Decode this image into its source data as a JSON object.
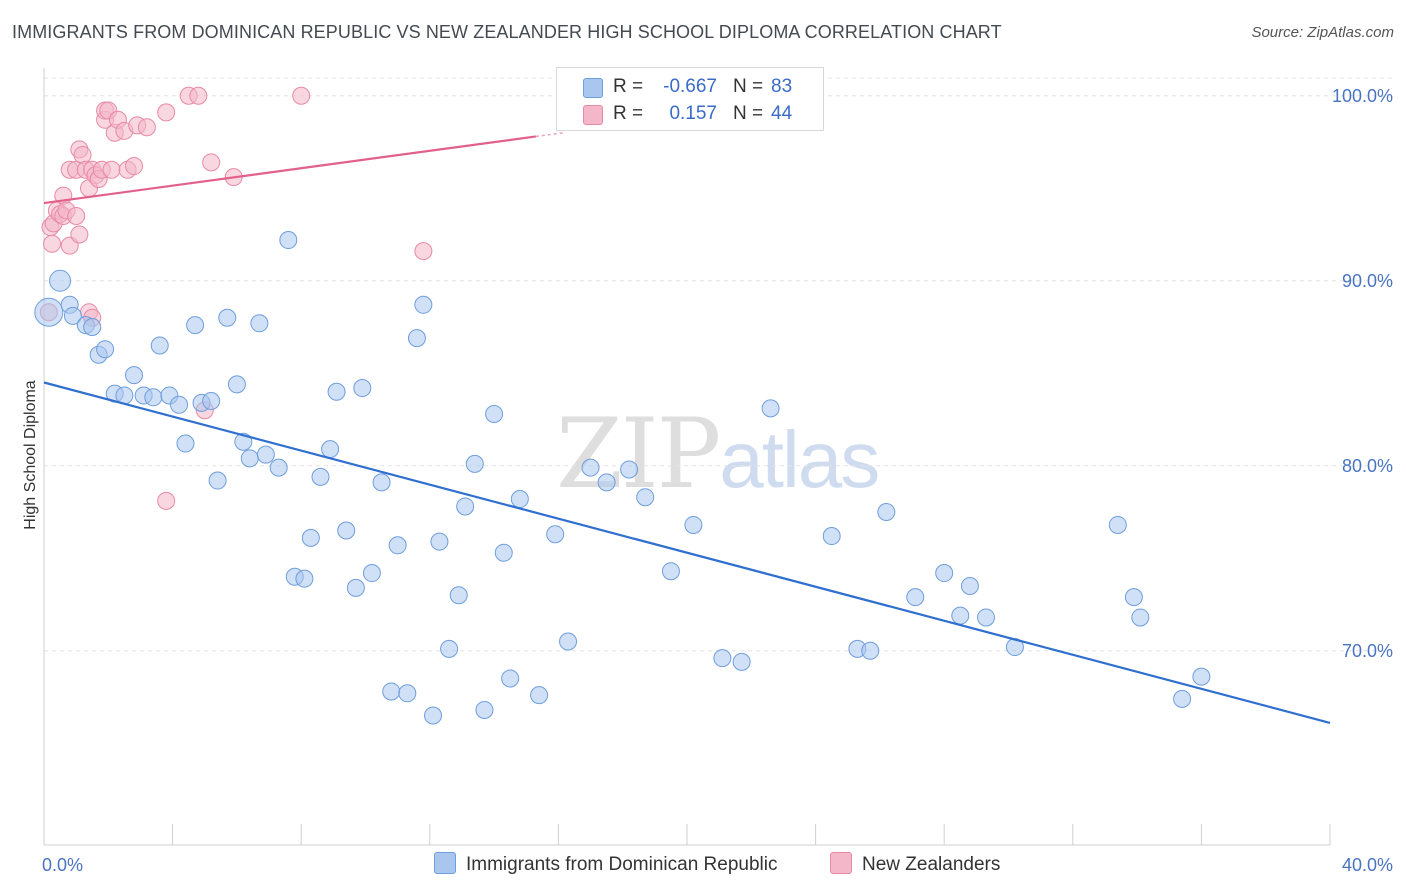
{
  "title": "IMMIGRANTS FROM DOMINICAN REPUBLIC VS NEW ZEALANDER HIGH SCHOOL DIPLOMA CORRELATION CHART",
  "source": "Source: ZipAtlas.com",
  "watermark": {
    "zip": "ZIP",
    "atlas": "atlas"
  },
  "legend": {
    "rows": [
      {
        "r_label": "R =",
        "r_value": "-0.667",
        "n_label": "N =",
        "n_value": "83"
      },
      {
        "r_label": "R =",
        "r_value": "0.157",
        "n_label": "N =",
        "n_value": "44"
      }
    ]
  },
  "bottom_legend": {
    "blue": "Immigrants from Dominican Republic",
    "pink": "New Zealanders"
  },
  "colors": {
    "blue_fill": "#a9c6ee",
    "blue_stroke": "#6f9edd",
    "blue_line": "#2f6fcf",
    "pink_fill": "#f4b7c9",
    "pink_stroke": "#e88aa6",
    "pink_line": "#e2608a",
    "axis_text": "#4a74c2",
    "grid": "#e4e4e4"
  },
  "chart_data": {
    "type": "scatter",
    "title": "IMMIGRANTS FROM DOMINICAN REPUBLIC VS NEW ZEALANDER HIGH SCHOOL DIPLOMA CORRELATION CHART",
    "xlabel": "",
    "ylabel": "High School Diploma",
    "xlim": [
      0,
      40
    ],
    "ylim": [
      59.5,
      101.5
    ],
    "x_tick_labels": [
      "0.0%",
      "40.0%"
    ],
    "x_ticks": [
      0,
      40
    ],
    "y_ticks": [
      70,
      80,
      90,
      100
    ],
    "y_tick_labels": [
      "70.0%",
      "80.0%",
      "90.0%",
      "100.0%"
    ],
    "grid": true,
    "legend_position": "top-center",
    "series": [
      {
        "name": "Immigrants from Dominican Republic",
        "color": "#a9c6ee",
        "trend": {
          "x": [
            0,
            40
          ],
          "y": [
            84.5,
            66.1
          ]
        },
        "points": [
          [
            0.15,
            88.3
          ],
          [
            0.5,
            90.0
          ],
          [
            0.8,
            88.7
          ],
          [
            0.9,
            88.1
          ],
          [
            1.3,
            87.6
          ],
          [
            1.5,
            87.5
          ],
          [
            1.7,
            86.0
          ],
          [
            1.9,
            86.3
          ],
          [
            2.2,
            83.9
          ],
          [
            2.5,
            83.8
          ],
          [
            2.8,
            84.9
          ],
          [
            3.1,
            83.8
          ],
          [
            3.4,
            83.7
          ],
          [
            3.6,
            86.5
          ],
          [
            3.9,
            83.8
          ],
          [
            4.2,
            83.3
          ],
          [
            4.4,
            81.2
          ],
          [
            4.7,
            87.6
          ],
          [
            4.9,
            83.4
          ],
          [
            5.2,
            83.5
          ],
          [
            5.4,
            79.2
          ],
          [
            5.7,
            88.0
          ],
          [
            6.0,
            84.4
          ],
          [
            6.2,
            81.3
          ],
          [
            6.4,
            80.4
          ],
          [
            6.7,
            87.7
          ],
          [
            6.9,
            80.6
          ],
          [
            7.3,
            79.9
          ],
          [
            7.6,
            92.2
          ],
          [
            7.8,
            74.0
          ],
          [
            8.1,
            73.9
          ],
          [
            8.3,
            76.1
          ],
          [
            8.6,
            79.4
          ],
          [
            8.9,
            80.9
          ],
          [
            9.1,
            84.0
          ],
          [
            9.4,
            76.5
          ],
          [
            9.7,
            73.4
          ],
          [
            9.9,
            84.2
          ],
          [
            10.2,
            74.2
          ],
          [
            10.5,
            79.1
          ],
          [
            10.8,
            67.8
          ],
          [
            11.0,
            75.7
          ],
          [
            11.3,
            67.7
          ],
          [
            11.6,
            86.9
          ],
          [
            11.8,
            88.7
          ],
          [
            12.1,
            66.5
          ],
          [
            12.3,
            75.9
          ],
          [
            12.6,
            70.1
          ],
          [
            12.9,
            73.0
          ],
          [
            13.1,
            77.8
          ],
          [
            13.4,
            80.1
          ],
          [
            13.7,
            66.8
          ],
          [
            14.0,
            82.8
          ],
          [
            14.3,
            75.3
          ],
          [
            14.5,
            68.5
          ],
          [
            14.8,
            78.2
          ],
          [
            15.4,
            67.6
          ],
          [
            15.9,
            76.3
          ],
          [
            16.3,
            70.5
          ],
          [
            17.0,
            79.9
          ],
          [
            17.5,
            79.1
          ],
          [
            18.2,
            79.8
          ],
          [
            18.7,
            78.3
          ],
          [
            19.5,
            74.3
          ],
          [
            20.2,
            76.8
          ],
          [
            21.1,
            69.6
          ],
          [
            21.7,
            69.4
          ],
          [
            22.6,
            83.1
          ],
          [
            24.5,
            76.2
          ],
          [
            25.3,
            70.1
          ],
          [
            25.7,
            70.0
          ],
          [
            26.2,
            77.5
          ],
          [
            27.1,
            72.9
          ],
          [
            28.0,
            74.2
          ],
          [
            28.5,
            71.9
          ],
          [
            28.8,
            73.5
          ],
          [
            29.3,
            71.8
          ],
          [
            30.2,
            70.2
          ],
          [
            33.4,
            76.8
          ],
          [
            33.9,
            72.9
          ],
          [
            34.1,
            71.8
          ],
          [
            35.4,
            67.4
          ],
          [
            36.0,
            68.6
          ]
        ]
      },
      {
        "name": "New Zealanders",
        "color": "#f4b7c9",
        "trend": {
          "x": [
            0,
            15.3
          ],
          "y": [
            94.2,
            97.8
          ]
        },
        "points": [
          [
            0.15,
            88.3
          ],
          [
            0.2,
            92.9
          ],
          [
            0.25,
            92.0
          ],
          [
            0.3,
            93.1
          ],
          [
            0.4,
            93.8
          ],
          [
            0.5,
            93.6
          ],
          [
            0.6,
            94.6
          ],
          [
            0.6,
            93.5
          ],
          [
            0.7,
            93.8
          ],
          [
            0.8,
            91.9
          ],
          [
            0.8,
            96.0
          ],
          [
            1.0,
            93.5
          ],
          [
            1.0,
            96.0
          ],
          [
            1.1,
            92.5
          ],
          [
            1.1,
            97.1
          ],
          [
            1.2,
            96.8
          ],
          [
            1.3,
            96.0
          ],
          [
            1.4,
            95.0
          ],
          [
            1.4,
            88.3
          ],
          [
            1.5,
            96.0
          ],
          [
            1.5,
            88.0
          ],
          [
            1.6,
            95.7
          ],
          [
            1.7,
            95.5
          ],
          [
            1.8,
            96.0
          ],
          [
            1.9,
            98.7
          ],
          [
            1.9,
            99.2
          ],
          [
            2.0,
            99.2
          ],
          [
            2.1,
            96.0
          ],
          [
            2.2,
            98.0
          ],
          [
            2.3,
            98.7
          ],
          [
            2.5,
            98.1
          ],
          [
            2.6,
            96.0
          ],
          [
            2.8,
            96.2
          ],
          [
            2.9,
            98.4
          ],
          [
            3.2,
            98.3
          ],
          [
            3.8,
            78.1
          ],
          [
            3.8,
            99.1
          ],
          [
            4.5,
            100.0
          ],
          [
            4.8,
            100.0
          ],
          [
            5.0,
            83.0
          ],
          [
            5.2,
            96.4
          ],
          [
            5.9,
            95.6
          ],
          [
            8.0,
            100.0
          ],
          [
            11.8,
            91.6
          ]
        ]
      }
    ]
  }
}
